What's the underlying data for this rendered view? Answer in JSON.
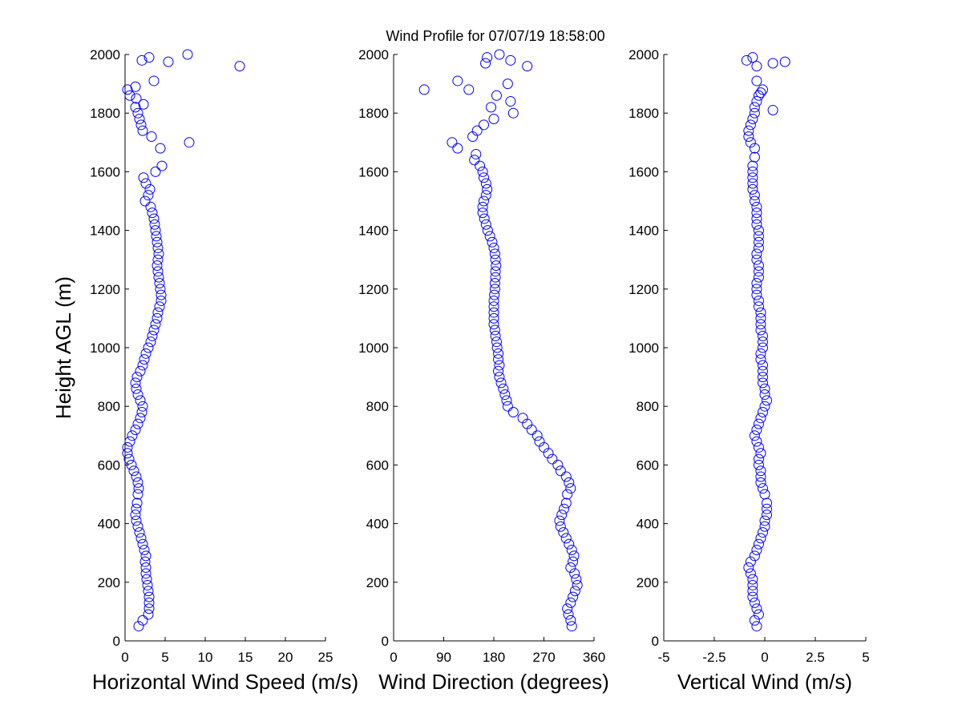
{
  "title": "Wind Profile for  07/07/19 18:58:00",
  "marker_color": "#0000ff",
  "chart_data": [
    {
      "type": "scatter",
      "xlabel": "Horizontal Wind Speed (m/s)",
      "ylabel": "Height AGL (m)",
      "xlim": [
        0,
        25
      ],
      "ylim": [
        0,
        2000
      ],
      "xticks": [
        "0",
        "5",
        "10",
        "15",
        "20",
        "25"
      ],
      "xtick_values": [
        0,
        5,
        10,
        15,
        20,
        25
      ],
      "yticks": [
        "0",
        "200",
        "400",
        "600",
        "800",
        "1000",
        "1200",
        "1400",
        "1600",
        "1800",
        "2000"
      ],
      "ytick_values": [
        0,
        200,
        400,
        600,
        800,
        1000,
        1200,
        1400,
        1600,
        1800,
        2000
      ],
      "x": [
        1.7,
        2.2,
        2.9,
        3.0,
        3.0,
        3.0,
        2.9,
        2.8,
        2.7,
        2.6,
        2.6,
        2.5,
        2.6,
        2.4,
        2.2,
        2.0,
        1.8,
        1.6,
        1.4,
        1.3,
        1.4,
        1.5,
        1.6,
        1.7,
        1.6,
        1.4,
        1.1,
        0.8,
        0.5,
        0.3,
        0.3,
        0.6,
        0.9,
        1.3,
        1.6,
        1.9,
        2.1,
        2.2,
        1.9,
        1.6,
        1.4,
        1.3,
        1.5,
        1.9,
        2.2,
        2.4,
        2.6,
        2.9,
        3.2,
        3.4,
        3.6,
        3.8,
        4.0,
        4.1,
        4.3,
        4.5,
        4.5,
        4.4,
        4.3,
        4.2,
        4.1,
        4.0,
        4.1,
        4.2,
        4.1,
        4.0,
        3.9,
        3.8,
        3.7,
        3.6,
        3.4,
        3.2,
        2.5,
        2.9,
        3.1,
        2.6,
        2.3,
        3.8,
        4.6,
        4.4,
        8.0,
        3.3,
        2.2,
        2.0,
        1.8,
        1.6,
        1.3,
        2.3,
        1.4,
        0.6,
        0.3,
        1.3,
        3.6,
        14.3,
        5.4,
        7.8,
        2.1,
        3.0
      ],
      "y": [
        50,
        70,
        90,
        110,
        130,
        150,
        170,
        190,
        210,
        230,
        250,
        270,
        290,
        310,
        330,
        350,
        370,
        390,
        410,
        430,
        450,
        470,
        500,
        520,
        540,
        560,
        580,
        600,
        620,
        640,
        660,
        680,
        700,
        720,
        740,
        760,
        780,
        800,
        820,
        840,
        860,
        880,
        900,
        920,
        940,
        960,
        980,
        1000,
        1020,
        1040,
        1060,
        1080,
        1100,
        1120,
        1140,
        1160,
        1180,
        1200,
        1220,
        1240,
        1260,
        1280,
        1300,
        1320,
        1340,
        1360,
        1380,
        1400,
        1420,
        1440,
        1460,
        1480,
        1500,
        1520,
        1540,
        1560,
        1580,
        1600,
        1620,
        1680,
        1700,
        1720,
        1740,
        1760,
        1780,
        1800,
        1820,
        1830,
        1850,
        1860,
        1880,
        1890,
        1910,
        1960,
        1975,
        2000,
        1980,
        1990
      ]
    },
    {
      "type": "scatter",
      "xlabel": "Wind Direction (degrees)",
      "ylabel": "",
      "xlim": [
        0,
        360
      ],
      "ylim": [
        0,
        2000
      ],
      "xticks": [
        "0",
        "90",
        "180",
        "270",
        "360"
      ],
      "xtick_values": [
        0,
        90,
        180,
        270,
        360
      ],
      "yticks": [
        "0",
        "200",
        "400",
        "600",
        "800",
        "1000",
        "1200",
        "1400",
        "1600",
        "1800",
        "2000"
      ],
      "ytick_values": [
        0,
        200,
        400,
        600,
        800,
        1000,
        1200,
        1400,
        1600,
        1800,
        2000
      ],
      "x": [
        320,
        318,
        314,
        312,
        318,
        322,
        326,
        330,
        328,
        325,
        318,
        322,
        324,
        320,
        315,
        310,
        305,
        300,
        298,
        302,
        306,
        310,
        312,
        318,
        315,
        310,
        300,
        295,
        285,
        278,
        270,
        262,
        258,
        248,
        240,
        232,
        215,
        205,
        203,
        200,
        197,
        193,
        190,
        188,
        190,
        188,
        188,
        186,
        185,
        183,
        182,
        180,
        180,
        180,
        180,
        180,
        181,
        182,
        182,
        183,
        183,
        184,
        183,
        182,
        180,
        177,
        173,
        169,
        166,
        163,
        160,
        160,
        162,
        166,
        168,
        166,
        162,
        160,
        155,
        145,
        148,
        115,
        105,
        142,
        150,
        162,
        180,
        215,
        175,
        210,
        185,
        135,
        205,
        55,
        240,
        210,
        165,
        190,
        168,
        115
      ],
      "y": [
        50,
        70,
        90,
        110,
        130,
        150,
        170,
        190,
        210,
        230,
        250,
        270,
        290,
        310,
        330,
        350,
        370,
        390,
        410,
        430,
        450,
        470,
        500,
        520,
        540,
        560,
        580,
        600,
        620,
        640,
        660,
        680,
        700,
        720,
        740,
        760,
        780,
        800,
        820,
        840,
        860,
        880,
        900,
        920,
        940,
        960,
        980,
        1000,
        1020,
        1040,
        1060,
        1080,
        1100,
        1120,
        1140,
        1160,
        1180,
        1200,
        1220,
        1240,
        1260,
        1280,
        1300,
        1320,
        1340,
        1360,
        1380,
        1400,
        1420,
        1440,
        1460,
        1480,
        1500,
        1520,
        1540,
        1560,
        1580,
        1600,
        1620,
        1640,
        1660,
        1680,
        1700,
        1720,
        1740,
        1760,
        1780,
        1800,
        1820,
        1840,
        1860,
        1880,
        1900,
        1880,
        1960,
        1980,
        1970,
        2000,
        1990,
        1910
      ]
    },
    {
      "type": "scatter",
      "xlabel": "Vertical Wind (m/s)",
      "ylabel": "",
      "xlim": [
        -5,
        5
      ],
      "ylim": [
        0,
        2000
      ],
      "xticks": [
        "-5",
        "-2.5",
        "0",
        "2.5",
        "5"
      ],
      "xtick_values": [
        -5,
        -2.5,
        0,
        2.5,
        5
      ],
      "yticks": [
        "0",
        "200",
        "400",
        "600",
        "800",
        "1000",
        "1200",
        "1400",
        "1600",
        "1800",
        "2000"
      ],
      "ytick_values": [
        0,
        200,
        400,
        600,
        800,
        1000,
        1200,
        1400,
        1600,
        1800,
        2000
      ],
      "x": [
        -0.4,
        -0.5,
        -0.3,
        -0.4,
        -0.5,
        -0.6,
        -0.6,
        -0.6,
        -0.6,
        -0.7,
        -0.8,
        -0.7,
        -0.5,
        -0.4,
        -0.3,
        -0.2,
        -0.1,
        0.0,
        0.0,
        0.1,
        0.1,
        0.1,
        0.0,
        -0.1,
        -0.2,
        -0.2,
        -0.2,
        -0.3,
        -0.3,
        -0.2,
        -0.3,
        -0.4,
        -0.5,
        -0.4,
        -0.3,
        -0.2,
        -0.1,
        0.0,
        0.1,
        0.0,
        0.0,
        -0.1,
        -0.1,
        -0.1,
        -0.1,
        -0.2,
        -0.2,
        -0.1,
        -0.1,
        -0.1,
        -0.2,
        -0.2,
        -0.2,
        -0.2,
        -0.3,
        -0.3,
        -0.4,
        -0.4,
        -0.4,
        -0.3,
        -0.3,
        -0.3,
        -0.4,
        -0.4,
        -0.3,
        -0.3,
        -0.3,
        -0.3,
        -0.4,
        -0.4,
        -0.4,
        -0.4,
        -0.5,
        -0.5,
        -0.6,
        -0.6,
        -0.6,
        -0.6,
        -0.6,
        -0.5,
        -0.5,
        -0.7,
        -0.8,
        -0.8,
        -0.7,
        -0.6,
        -0.5,
        -0.5,
        -0.4,
        -0.3,
        -0.2,
        -0.1,
        -0.4,
        0.4,
        -0.4,
        0.4,
        1.0,
        -0.9,
        -0.6
      ],
      "y": [
        50,
        70,
        90,
        110,
        130,
        150,
        170,
        190,
        210,
        230,
        250,
        270,
        290,
        310,
        330,
        350,
        370,
        390,
        410,
        430,
        450,
        470,
        500,
        520,
        540,
        560,
        580,
        600,
        620,
        640,
        660,
        680,
        700,
        720,
        740,
        760,
        780,
        800,
        820,
        840,
        860,
        880,
        900,
        920,
        940,
        960,
        980,
        1000,
        1020,
        1040,
        1060,
        1080,
        1100,
        1120,
        1140,
        1160,
        1180,
        1200,
        1220,
        1240,
        1260,
        1280,
        1300,
        1320,
        1340,
        1360,
        1380,
        1400,
        1420,
        1440,
        1460,
        1480,
        1500,
        1520,
        1540,
        1560,
        1580,
        1600,
        1620,
        1650,
        1680,
        1700,
        1720,
        1740,
        1760,
        1780,
        1800,
        1820,
        1840,
        1860,
        1870,
        1880,
        1910,
        1810,
        1960,
        1970,
        1975,
        1980,
        1990
      ]
    }
  ]
}
